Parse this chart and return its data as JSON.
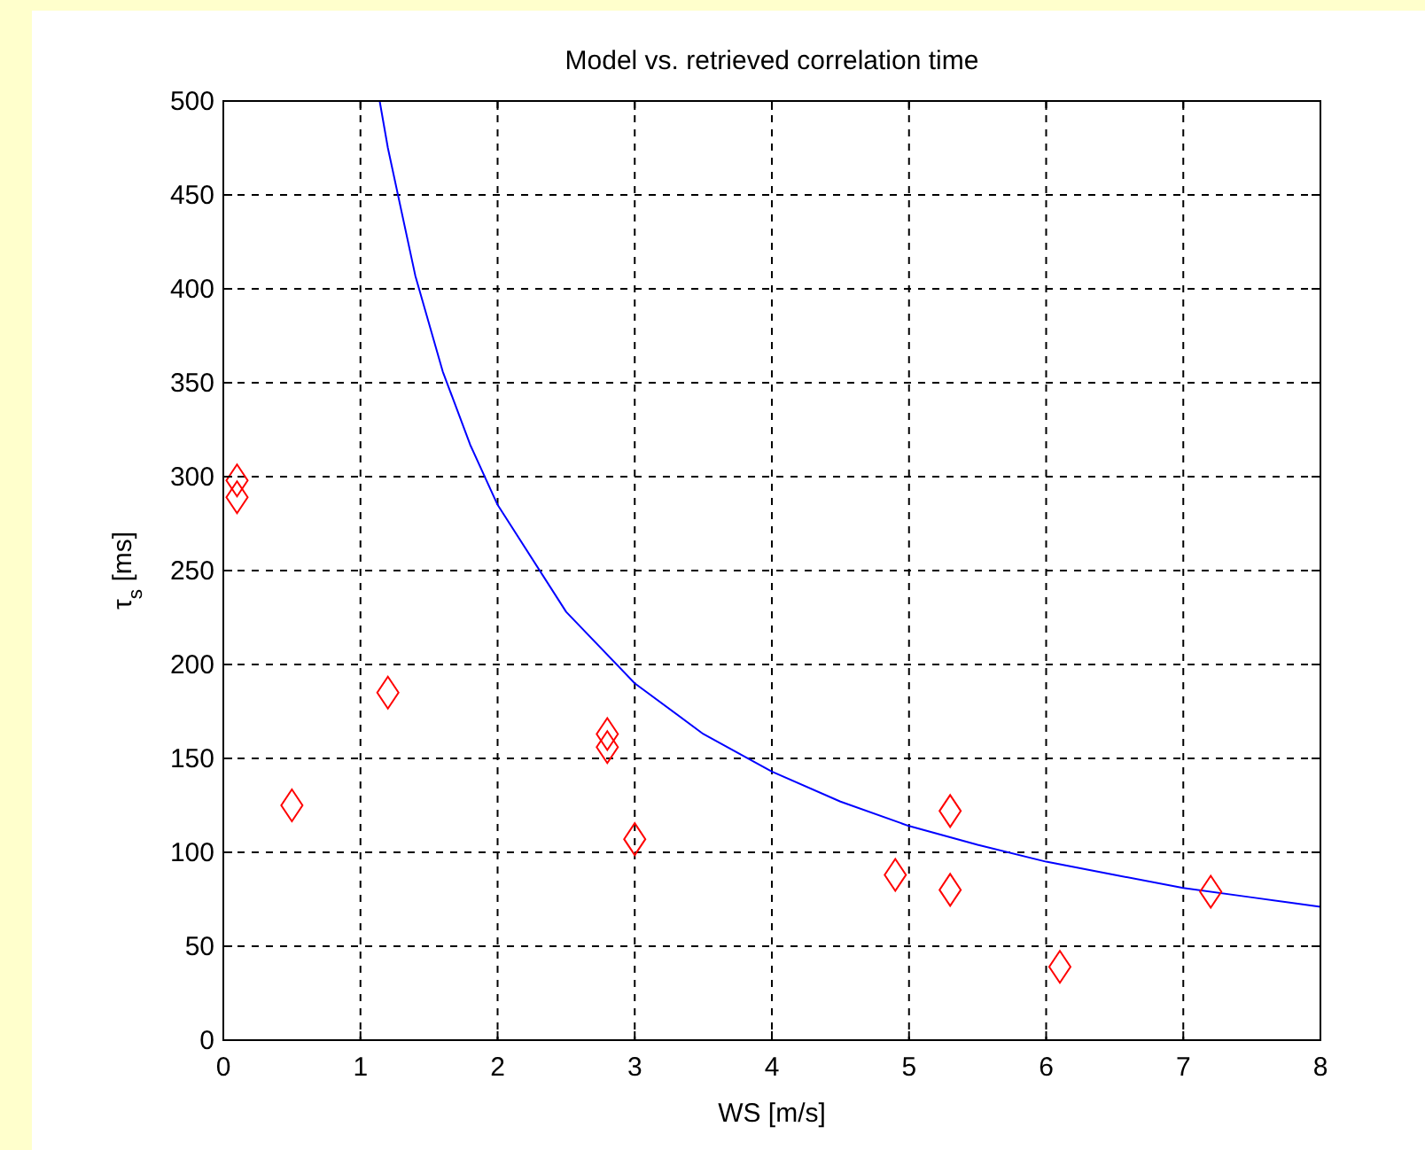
{
  "chart_data": {
    "type": "scatter",
    "title": "Model vs. retrieved correlation time",
    "xlabel": "WS [m/s]",
    "ylabel": "τ$_{s}$ [ms]",
    "xlim": [
      0,
      8
    ],
    "xticks": [
      0,
      1,
      2,
      3,
      4,
      5,
      6,
      7,
      8
    ],
    "ylim": [
      0,
      500
    ],
    "yticks": [
      0,
      50,
      100,
      150,
      200,
      250,
      300,
      350,
      400,
      450,
      500
    ],
    "grid": true,
    "series": [
      {
        "type": "line",
        "color": "#0000ff",
        "marker": "none",
        "line_style": "solid",
        "x": [
          1.14,
          1.2,
          1.4,
          1.6,
          1.8,
          2,
          2.5,
          3,
          3.5,
          4,
          4.5,
          5,
          5.5,
          6,
          6.5,
          7,
          7.5,
          8
        ],
        "values": [
          500,
          475,
          407,
          356,
          317,
          285,
          228,
          190,
          163,
          143,
          127,
          114,
          104,
          95,
          88,
          81,
          76,
          71
        ]
      },
      {
        "color": "#ff0000",
        "marker": "diamond",
        "x": [
          0.1,
          0.1,
          0.5,
          1.2,
          2.8,
          2.8,
          3.0,
          4.9,
          5.3,
          5.3,
          6.1,
          7.2
        ],
        "values": [
          298,
          289,
          125,
          185,
          163,
          156,
          107,
          88,
          122,
          80,
          39,
          79
        ]
      }
    ]
  }
}
